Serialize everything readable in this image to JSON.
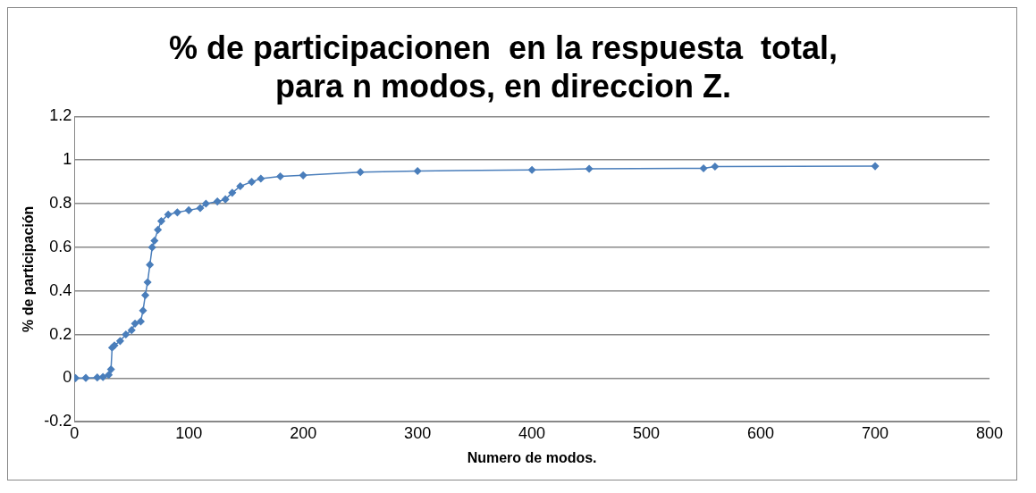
{
  "chart_data": {
    "type": "line",
    "title": "% de participacionen  en la respuesta  total, para n modos, en direccion Z.",
    "xlabel": "Numero de modos.",
    "ylabel": "% de participación",
    "x": [
      1,
      10,
      20,
      25,
      30,
      32,
      33,
      35,
      40,
      45,
      50,
      53,
      58,
      60,
      62,
      64,
      66,
      68,
      70,
      73,
      76,
      82,
      90,
      100,
      110,
      115,
      125,
      132,
      138,
      145,
      155,
      163,
      180,
      200,
      250,
      300,
      400,
      450,
      550,
      560,
      700
    ],
    "series": [
      {
        "color": "#4a7ebb",
        "values": [
          0.0,
          0.001,
          0.003,
          0.005,
          0.015,
          0.04,
          0.14,
          0.15,
          0.17,
          0.2,
          0.22,
          0.25,
          0.26,
          0.31,
          0.38,
          0.44,
          0.52,
          0.6,
          0.63,
          0.68,
          0.72,
          0.75,
          0.76,
          0.77,
          0.78,
          0.8,
          0.81,
          0.82,
          0.85,
          0.88,
          0.9,
          0.915,
          0.925,
          0.93,
          0.945,
          0.95,
          0.955,
          0.96,
          0.962,
          0.97,
          0.972
        ]
      }
    ],
    "xlim": [
      0,
      800
    ],
    "xticks": [
      0,
      100,
      200,
      300,
      400,
      500,
      600,
      700,
      800
    ],
    "ylim": [
      -0.2,
      1.2
    ],
    "yticks": [
      -0.2,
      0,
      0.2,
      0.4,
      0.6,
      0.8,
      1,
      1.2
    ],
    "grid": "y",
    "legend": false,
    "marker": "diamond",
    "line_style": "solid"
  }
}
